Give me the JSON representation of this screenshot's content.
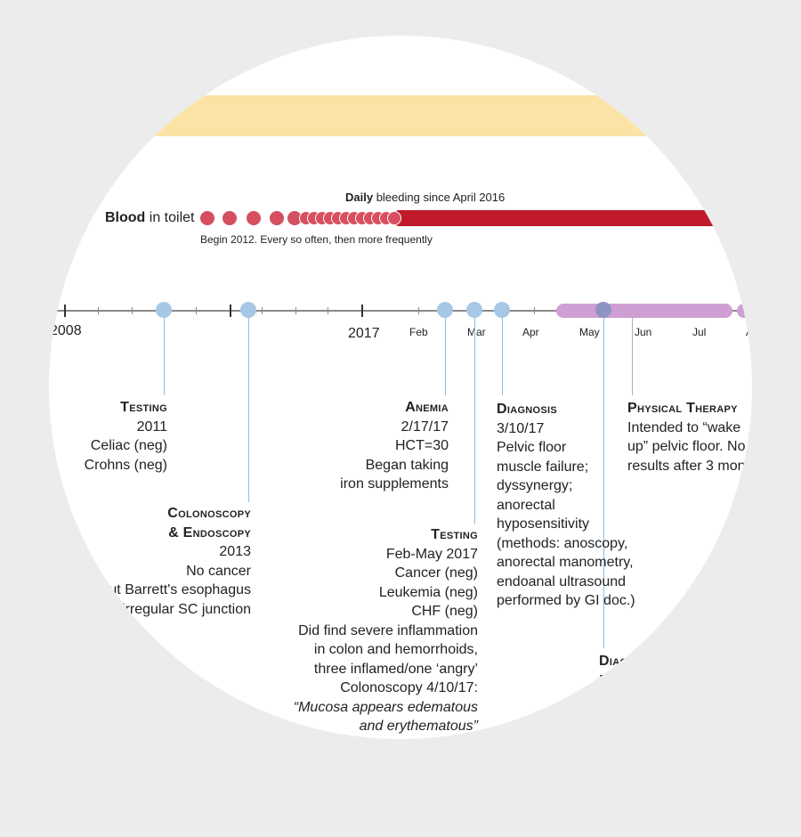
{
  "blood": {
    "label_bold": "Blood",
    "label_rest": " in toilet",
    "daily_bold": "Daily",
    "daily_rest": " bleeding since April 2016",
    "begin": "Begin 2012. Every so often, then more frequently"
  },
  "axis": {
    "year_2008": "2008",
    "year_2017": "2017",
    "months": [
      "Feb",
      "Mar",
      "Apr",
      "May",
      "Jun",
      "Jul",
      "A"
    ]
  },
  "events": {
    "testing_2011": {
      "heading": "Testing",
      "lines": [
        "2011",
        "Celiac (neg)",
        "Crohns (neg)"
      ]
    },
    "colonoscopy": {
      "heading1": "Colonoscopy",
      "heading2": "& Endoscopy",
      "lines": [
        "2013",
        "No cancer",
        "ut Barrett's esophagus",
        "irregular SC junction"
      ]
    },
    "anemia": {
      "heading": "Anemia",
      "lines": [
        "2/17/17",
        "HCT=30",
        "Began taking",
        "iron supplements"
      ]
    },
    "testing_2017": {
      "heading": "Testing",
      "lines": [
        "Feb-May 2017",
        "Cancer (neg)",
        "Leukemia (neg)",
        "CHF (neg)",
        "Did find severe inflammation",
        "in colon and hemorrhoids,",
        "three inflamed/one ‘angry’",
        "Colonoscopy 4/10/17:"
      ],
      "quote1": "“Mucosa appears edematous",
      "quote2": "and erythematous”"
    },
    "diagnosis": {
      "heading": "Diagnosis",
      "lines": [
        "3/10/17",
        "Pelvic floor",
        "muscle failure;",
        "dyssynergy;",
        "anorectal",
        "hyposensitivity",
        "(methods: anoscopy,",
        "anorectal manometry,",
        "endoanal ultrasound",
        "performed by GI doc.)"
      ]
    },
    "physical_therapy": {
      "heading": "Physical Therapy",
      "lines": [
        "Intended to “wake",
        "up” pelvic floor. No",
        "results after 3 mon"
      ]
    },
    "diag2": {
      "heading": "Diag",
      "line": "F"
    }
  },
  "colors": {
    "yellow_band": "#fbe3a6",
    "blood_red": "#c11a2c",
    "blood_dot": "#d44f60",
    "event_blue": "#a6c8e6",
    "therapy_purple": "#cf9fd4"
  }
}
